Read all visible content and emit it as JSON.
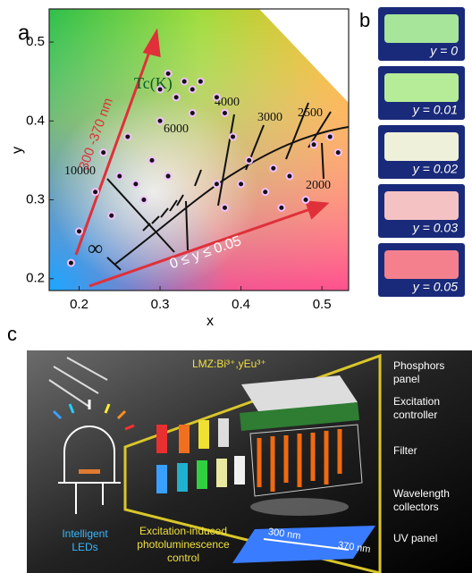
{
  "panel_labels": [
    "a",
    "b",
    "c"
  ],
  "chart_data": {
    "type": "scatter",
    "xlabel": "x",
    "ylabel": "y",
    "xlim": [
      0.163,
      0.533
    ],
    "ylim": [
      0.185,
      0.542
    ],
    "xticks": [
      0.2,
      0.3,
      0.4,
      0.5
    ],
    "yticks": [
      0.2,
      0.3,
      0.4,
      0.5
    ],
    "annotations": [
      "Tc(K)",
      "10000",
      "6000",
      "4000",
      "3000",
      "2500",
      "2000",
      "∞",
      "300 -370 nm",
      "0 ≤ y ≤ 0.05"
    ],
    "x": [
      0.19,
      0.2,
      0.22,
      0.23,
      0.24,
      0.25,
      0.26,
      0.27,
      0.28,
      0.29,
      0.3,
      0.3,
      0.31,
      0.32,
      0.33,
      0.34,
      0.35,
      0.34,
      0.37,
      0.38,
      0.39,
      0.4,
      0.41,
      0.43,
      0.44,
      0.45,
      0.46,
      0.48,
      0.49,
      0.51,
      0.52,
      0.37,
      0.38,
      0.31
    ],
    "y": [
      0.22,
      0.26,
      0.31,
      0.36,
      0.28,
      0.33,
      0.38,
      0.32,
      0.3,
      0.35,
      0.4,
      0.44,
      0.46,
      0.43,
      0.45,
      0.41,
      0.45,
      0.44,
      0.43,
      0.41,
      0.38,
      0.32,
      0.35,
      0.31,
      0.34,
      0.29,
      0.33,
      0.3,
      0.37,
      0.38,
      0.36,
      0.32,
      0.29,
      0.33
    ]
  },
  "photos": [
    "y = 0",
    "y = 0.01",
    "y = 0.02",
    "y = 0.03",
    "y = 0.05"
  ],
  "schematic": {
    "material": "LMZ:Bi³⁺,yEu³⁺",
    "phosphors_panel": [
      "Phosphors",
      "panel"
    ],
    "excitation_controller": [
      "Excitation",
      "controller"
    ],
    "filter": "Filter",
    "wavelength_collectors": [
      "Wavelength",
      "collectors"
    ],
    "uv_panel": "UV panel",
    "leds": [
      "Intelligent",
      "LEDs"
    ],
    "control": [
      "Excitation-induced",
      "photoluminescence",
      "control"
    ],
    "uv_start": "300 nm",
    "uv_end": "370 nm"
  }
}
